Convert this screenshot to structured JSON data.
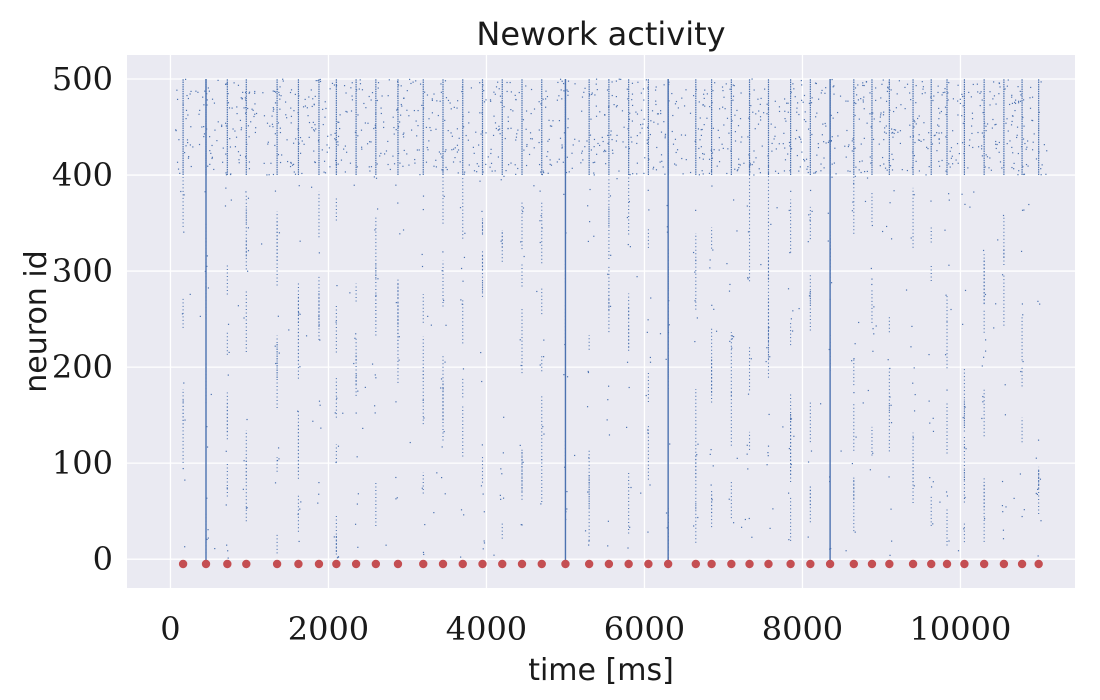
{
  "chart_data": {
    "type": "scatter",
    "title": "Nework activity",
    "xlabel": "time [ms]",
    "ylabel": "neuron id",
    "xlim": [
      -550,
      11450
    ],
    "ylim": [
      -30,
      525
    ],
    "xticks": [
      0,
      2000,
      4000,
      6000,
      8000,
      10000
    ],
    "yticks": [
      0,
      100,
      200,
      300,
      400,
      500
    ],
    "grid": true,
    "colors": {
      "background": "#eaeaf2",
      "grid": "#ffffff",
      "spikes": "#4c72b0",
      "events": "#c44e52"
    },
    "series": [
      {
        "kind": "spike-raster-inhibitory",
        "neuron_range": [
          400,
          500
        ],
        "burst_times_ms": [
          160,
          450,
          720,
          960,
          1350,
          1620,
          1880,
          2100,
          2350,
          2600,
          2880,
          3200,
          3450,
          3700,
          3950,
          4200,
          4450,
          4700,
          5000,
          5300,
          5550,
          5800,
          6050,
          6300,
          6650,
          6850,
          7100,
          7330,
          7570,
          7850,
          8100,
          8350,
          8650,
          8880,
          9100,
          9400,
          9630,
          9830,
          10050,
          10300,
          10550,
          10780,
          10990
        ]
      },
      {
        "kind": "spike-raster-excitatory",
        "neuron_range": [
          0,
          400
        ],
        "burst_times_ms": [
          160,
          450,
          720,
          960,
          1350,
          1620,
          1880,
          2100,
          2350,
          2600,
          2880,
          3200,
          3450,
          3700,
          3950,
          4200,
          4450,
          4700,
          5000,
          5300,
          5550,
          5800,
          6050,
          6300,
          6650,
          6850,
          7100,
          7330,
          7570,
          7850,
          8100,
          8350,
          8650,
          8880,
          9100,
          9400,
          9630,
          9830,
          10050,
          10300,
          10550,
          10780,
          10990
        ]
      },
      {
        "kind": "full-synchrony-events",
        "times_ms": [
          450,
          5000,
          6300,
          8350
        ],
        "neuron_range": [
          -5,
          500
        ]
      },
      {
        "kind": "stimulus-markers",
        "y": -5,
        "times_ms": [
          160,
          450,
          720,
          960,
          1350,
          1620,
          1880,
          2100,
          2350,
          2600,
          2880,
          3200,
          3450,
          3700,
          3950,
          4200,
          4450,
          4700,
          5000,
          5300,
          5550,
          5800,
          6050,
          6300,
          6650,
          6850,
          7100,
          7330,
          7570,
          7850,
          8100,
          8350,
          8650,
          8880,
          9100,
          9400,
          9630,
          9830,
          10050,
          10300,
          10550,
          10780,
          10990
        ]
      }
    ]
  }
}
